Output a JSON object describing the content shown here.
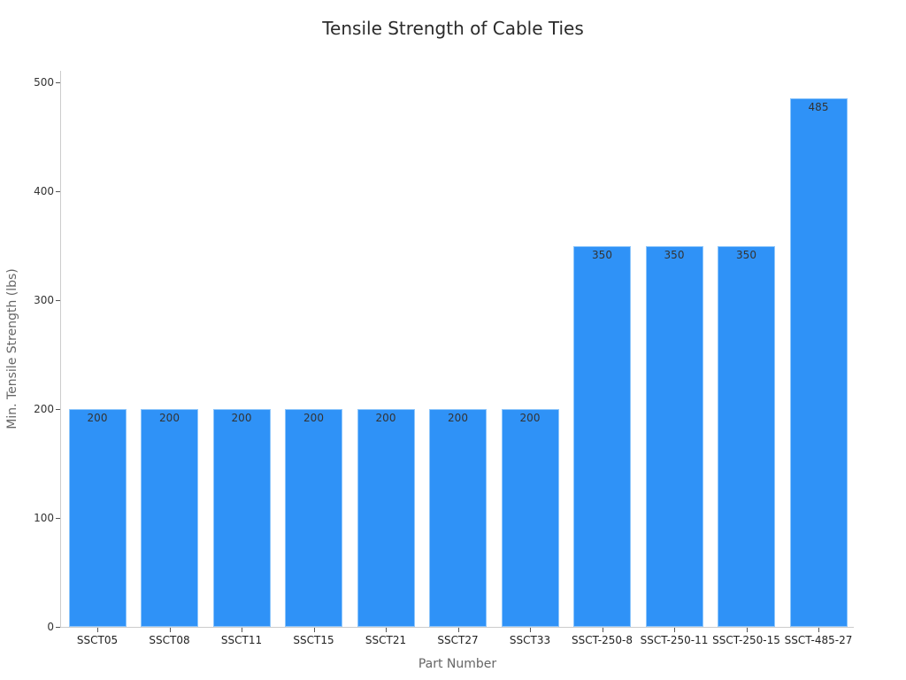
{
  "title": "Tensile Strength of Cable Ties",
  "xlabel": "Part Number",
  "ylabel": "Min. Tensile Strength (lbs)",
  "yticks": [
    "0",
    "100",
    "200",
    "300",
    "400",
    "500"
  ],
  "bar_color": "#2f92f7",
  "chart_data": {
    "type": "bar",
    "title": "Tensile Strength of Cable Ties",
    "xlabel": "Part Number",
    "ylabel": "Min. Tensile Strength (lbs)",
    "categories": [
      "SSCT05",
      "SSCT08",
      "SSCT11",
      "SSCT15",
      "SSCT21",
      "SSCT27",
      "SSCT33",
      "SSCT-250-8",
      "SSCT-250-11",
      "SSCT-250-15",
      "SSCT-485-27"
    ],
    "values": [
      200,
      200,
      200,
      200,
      200,
      200,
      200,
      350,
      350,
      350,
      485
    ],
    "data_labels": [
      "200",
      "200",
      "200",
      "200",
      "200",
      "200",
      "200",
      "350",
      "350",
      "350",
      "485"
    ],
    "ylim": [
      0,
      510
    ],
    "yticks": [
      0,
      100,
      200,
      300,
      400,
      500
    ],
    "grid": false,
    "legend": null
  }
}
